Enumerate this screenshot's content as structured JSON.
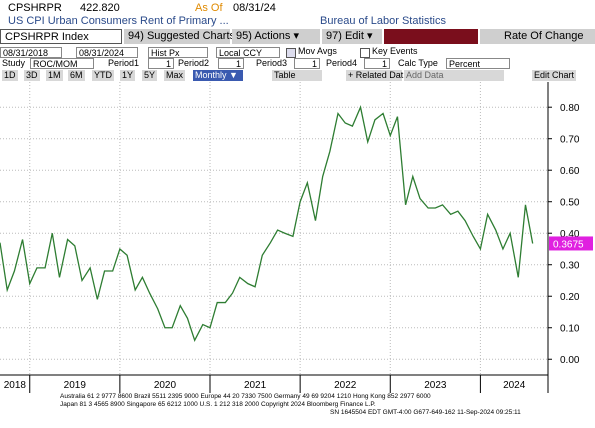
{
  "header": {
    "ticker": "CPSHRPR",
    "price": "422.820",
    "as_of_label": "As Of",
    "as_of_date": "08/31/24",
    "description": "US CPI Urban Consumers Rent of Primary ...",
    "source": "Bureau of Labor Statistics"
  },
  "toolbar": {
    "security": "CPSHRPR Index",
    "suggested": "94) Suggested Charts",
    "actions": "95) Actions ▾",
    "edit": "97) Edit ▾",
    "rate_of_change": "Rate Of Change"
  },
  "controls": {
    "start_date": "08/31/2018",
    "end_date": "08/31/2024",
    "price_field": "Hist Px",
    "currency": "Local CCY",
    "mov_avgs": "Mov Avgs",
    "key_events": "Key Events",
    "study_label": "Study",
    "study": "ROC/MOM",
    "period1_label": "Period1",
    "period1": "1",
    "period2_label": "Period2",
    "period2": "1",
    "period3_label": "Period3",
    "period3": "1",
    "period4_label": "Period4",
    "period4": "1",
    "calc_type_label": "Calc Type",
    "calc_type": "Percent",
    "ranges": [
      "1D",
      "3D",
      "1M",
      "6M",
      "YTD",
      "1Y",
      "5Y",
      "Max"
    ],
    "frequency": "Monthly ▼",
    "table": "Table",
    "related": "+ Related Dat",
    "add_data": "Add Data",
    "edit_chart": "Edit Chart"
  },
  "chart_data": {
    "type": "line",
    "x": [
      2018.67,
      2018.75,
      2018.83,
      2018.92,
      2019.0,
      2019.08,
      2019.17,
      2019.25,
      2019.33,
      2019.42,
      2019.5,
      2019.58,
      2019.67,
      2019.75,
      2019.83,
      2019.92,
      2020.0,
      2020.08,
      2020.17,
      2020.25,
      2020.33,
      2020.42,
      2020.5,
      2020.58,
      2020.67,
      2020.75,
      2020.83,
      2020.92,
      2021.0,
      2021.08,
      2021.17,
      2021.25,
      2021.33,
      2021.42,
      2021.5,
      2021.58,
      2021.67,
      2021.75,
      2021.83,
      2021.92,
      2022.0,
      2022.08,
      2022.17,
      2022.25,
      2022.33,
      2022.42,
      2022.5,
      2022.58,
      2022.67,
      2022.75,
      2022.83,
      2022.92,
      2023.0,
      2023.08,
      2023.17,
      2023.25,
      2023.33,
      2023.42,
      2023.5,
      2023.58,
      2023.67,
      2023.75,
      2023.83,
      2023.92,
      2024.0,
      2024.08,
      2024.17,
      2024.25,
      2024.33,
      2024.42,
      2024.5,
      2024.58
    ],
    "series": [
      {
        "color": "#2e7d32",
        "values": [
          0.37,
          0.22,
          0.28,
          0.38,
          0.24,
          0.29,
          0.29,
          0.4,
          0.26,
          0.38,
          0.36,
          0.25,
          0.29,
          0.19,
          0.28,
          0.28,
          0.35,
          0.33,
          0.22,
          0.26,
          0.21,
          0.16,
          0.1,
          0.1,
          0.17,
          0.13,
          0.06,
          0.11,
          0.1,
          0.18,
          0.18,
          0.21,
          0.26,
          0.24,
          0.23,
          0.33,
          0.37,
          0.41,
          0.4,
          0.39,
          0.5,
          0.56,
          0.44,
          0.58,
          0.66,
          0.78,
          0.75,
          0.74,
          0.8,
          0.69,
          0.76,
          0.78,
          0.71,
          0.77,
          0.49,
          0.58,
          0.51,
          0.48,
          0.48,
          0.49,
          0.46,
          0.47,
          0.44,
          0.39,
          0.35,
          0.46,
          0.41,
          0.35,
          0.4,
          0.26,
          0.49,
          0.3675
        ]
      }
    ],
    "last_value_label": "0.3675",
    "last_value_color": "#e020e0",
    "xlim": [
      2018.67,
      2024.75
    ],
    "xticks": [
      2019,
      2020,
      2021,
      2022,
      2023,
      2024
    ],
    "x_period_labels": [
      "2018",
      "2019",
      "2020",
      "2021",
      "2022",
      "2023",
      "2024"
    ],
    "ylim": [
      -0.05,
      0.88
    ],
    "yticks": [
      {
        "value": 0,
        "label": "0.00"
      },
      {
        "value": 0.1,
        "label": "0.10"
      },
      {
        "value": 0.2,
        "label": "0.20"
      },
      {
        "value": 0.3,
        "label": "0.30"
      },
      {
        "value": 0.4,
        "label": "0.40"
      },
      {
        "value": 0.5,
        "label": "0.50"
      },
      {
        "value": 0.6,
        "label": "0.60"
      },
      {
        "value": 0.7,
        "label": "0.70"
      },
      {
        "value": 0.8,
        "label": "0.80"
      }
    ],
    "grid": true
  },
  "footer": [
    "Australia 61 2 9777 8600 Brazil 5511 2395 9000 Europe 44 20 7330 7500 Germany 49 69 9204 1210 Hong Kong 852 2977 6000",
    "Japan 81 3 4565 8900       Singapore 65 6212 1000       U.S. 1 212 318 2000       Copyright 2024 Bloomberg Finance L.P.",
    "SN 1645504 EDT  GMT-4:00 G677-649-162 11-Sep-2024 09:25:11"
  ]
}
